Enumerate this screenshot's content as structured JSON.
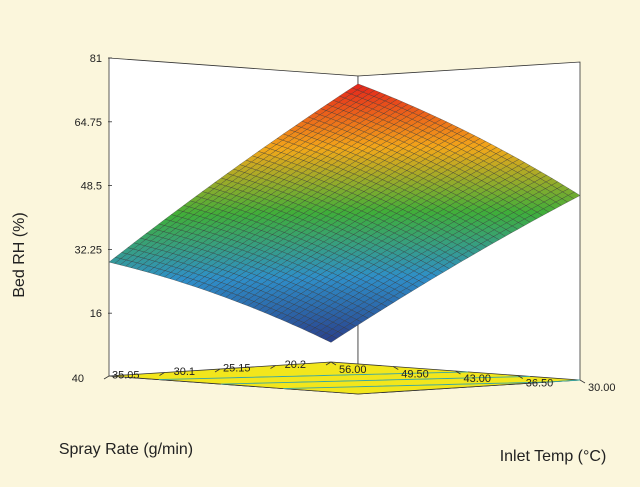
{
  "chart_data": {
    "type": "surface",
    "zlabel": "Bed RH (%)",
    "xlabel": "Inlet Temp (°C)",
    "ylabel": "Spray Rate (g/min)",
    "z_ticks": [
      "16",
      "32.25",
      "48.5",
      "64.75",
      "81"
    ],
    "x_ticks": [
      "30.00",
      "36.50",
      "43.00",
      "49.50",
      "56.00"
    ],
    "y_ticks": [
      "20.2",
      "25.15",
      "30.1",
      "35.05",
      "40"
    ],
    "zlim": [
      0,
      81
    ],
    "xlim": [
      30.0,
      56.0
    ],
    "ylim": [
      20.2,
      40.0
    ],
    "grid": true,
    "floor_contours": true,
    "corner_values": [
      {
        "inlet_temp": 30.0,
        "spray_rate": 40.0,
        "bed_rh": 79
      },
      {
        "inlet_temp": 56.0,
        "spray_rate": 40.0,
        "bed_rh": 29
      },
      {
        "inlet_temp": 30.0,
        "spray_rate": 20.2,
        "bed_rh": 47
      },
      {
        "inlet_temp": 56.0,
        "spray_rate": 20.2,
        "bed_rh": 5
      }
    ],
    "colors": {
      "background": "#fbf6dc",
      "floor": "#f2e61c",
      "surface_low": "#2a3f8a",
      "surface_mid": "#3fae3a",
      "surface_high": "#e4231b",
      "grid_line": "#333333"
    }
  }
}
